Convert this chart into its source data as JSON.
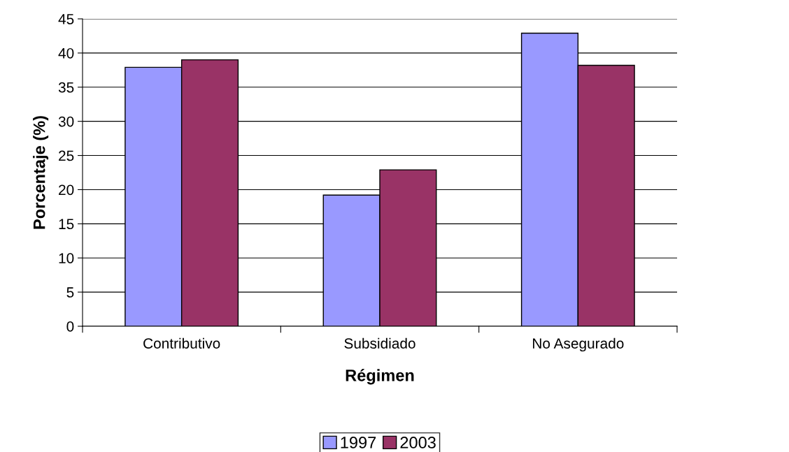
{
  "chart_data": {
    "type": "bar",
    "xlabel": "Régimen",
    "ylabel": "Porcentaje (%)",
    "categories": [
      "Contributivo",
      "Subsidiado",
      "No Asegurado"
    ],
    "series": [
      {
        "name": "1997",
        "color": "#9999ff",
        "values": [
          37.9,
          19.2,
          42.9
        ]
      },
      {
        "name": "2003",
        "color": "#993366",
        "values": [
          39.0,
          22.9,
          38.2
        ]
      }
    ],
    "ylim": [
      0,
      45
    ],
    "yticks": [
      0,
      5,
      10,
      15,
      20,
      25,
      30,
      35,
      40,
      45
    ],
    "grid": "y",
    "legend": "bottom"
  }
}
